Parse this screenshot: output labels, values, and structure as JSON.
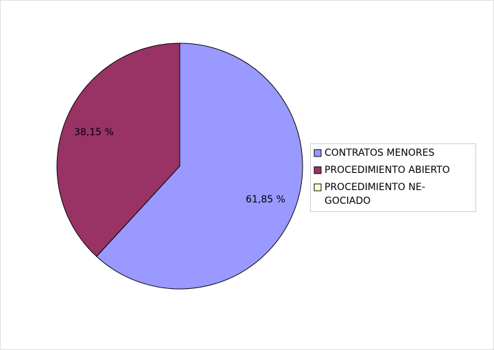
{
  "chart_data": {
    "type": "pie",
    "categories": [
      "CONTRATOS MENORES",
      "PROCEDIMIENTO ABIERTO",
      "PROCEDIMIENTO NE-\nGOCIADO"
    ],
    "values": [
      61.85,
      38.15,
      0
    ],
    "value_labels": [
      "61,85 %",
      "38,15 %",
      null
    ],
    "colors": [
      "#9999ff",
      "#993366",
      "#ffffcc"
    ],
    "legend": "right"
  }
}
